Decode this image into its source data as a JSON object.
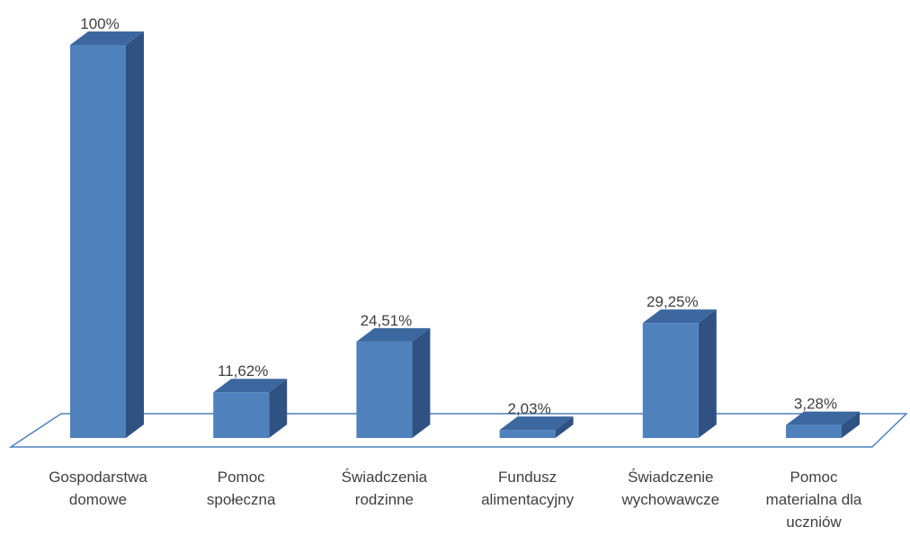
{
  "chart_data": {
    "type": "bar3d",
    "categories": [
      "Gospodarstwa\ndomowe",
      "Pomoc\nspołeczna",
      "Świadczenia\nrodzinne",
      "Fundusz\nalimentacyjny",
      "Świadczenie\nwychowawcze",
      "Pomoc\nmaterialna dla\nuczniów"
    ],
    "values": [
      100,
      11.62,
      24.51,
      2.03,
      29.25,
      3.28
    ],
    "value_labels": [
      "100%",
      "11,62%",
      "24,51%",
      "2,03%",
      "29,25%",
      "3,28%"
    ],
    "color": "#4f81bd"
  }
}
